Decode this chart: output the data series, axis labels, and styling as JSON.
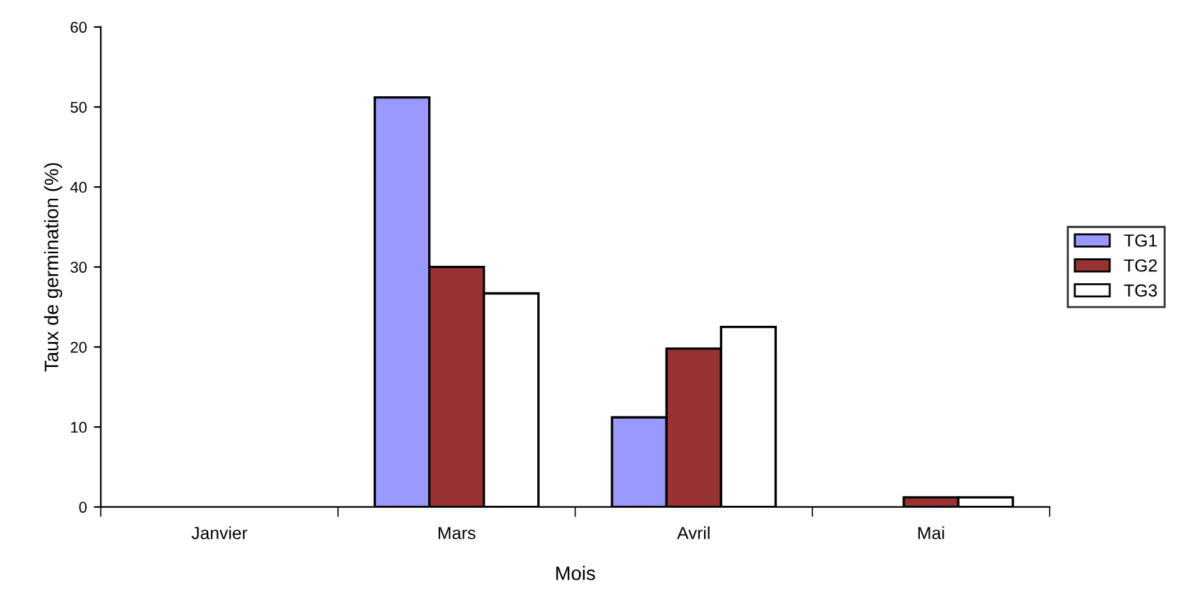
{
  "chart_data": {
    "type": "bar",
    "xlabel": "Mois",
    "ylabel": "Taux de germination (%)",
    "categories": [
      "Janvier",
      "Mars",
      "Avril",
      "Mai"
    ],
    "series": [
      {
        "name": "TG1",
        "color": "#9999ff",
        "values": [
          0,
          51.2,
          11.2,
          0
        ]
      },
      {
        "name": "TG2",
        "color": "#993333",
        "values": [
          0,
          30,
          19.8,
          1.2
        ]
      },
      {
        "name": "TG3",
        "color": "#ffffff",
        "values": [
          0,
          26.7,
          22.5,
          1.2
        ]
      }
    ],
    "ylim": [
      0,
      60
    ],
    "yticks": [
      0,
      10,
      20,
      30,
      40,
      50,
      60
    ],
    "grid": false,
    "legend": "right"
  }
}
